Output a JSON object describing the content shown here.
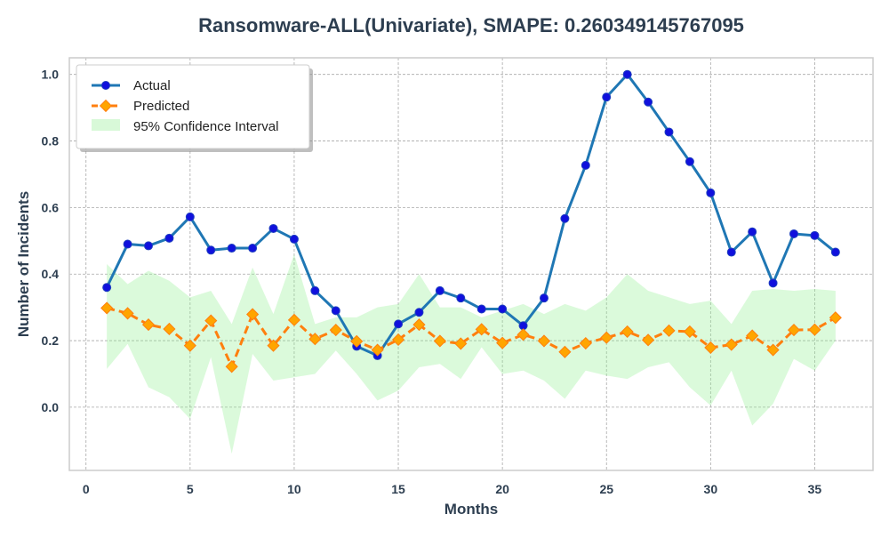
{
  "chart_data": {
    "type": "line",
    "title": "Ransomware-ALL(Univariate), SMAPE: 0.260349145767095",
    "xlabel": "Months",
    "ylabel": "Number of Incidents",
    "xlim": [
      -0.8,
      37.8
    ],
    "ylim": [
      -0.19,
      1.05
    ],
    "xticks": [
      0,
      5,
      10,
      15,
      20,
      25,
      30,
      35
    ],
    "yticks": [
      0.0,
      0.2,
      0.4,
      0.6,
      0.8,
      1.0
    ],
    "xtick_labels": [
      "0",
      "5",
      "10",
      "15",
      "20",
      "25",
      "30",
      "35"
    ],
    "ytick_labels": [
      "0.0",
      "0.2",
      "0.4",
      "0.6",
      "0.8",
      "1.0"
    ],
    "grid": true,
    "legend_position": "top-left",
    "x": [
      1,
      2,
      3,
      4,
      5,
      6,
      7,
      8,
      9,
      10,
      11,
      12,
      13,
      14,
      15,
      16,
      17,
      18,
      19,
      20,
      21,
      22,
      23,
      24,
      25,
      26,
      27,
      28,
      29,
      30,
      31,
      32,
      33,
      34,
      35,
      36
    ],
    "series": [
      {
        "name": "Actual",
        "color": "#1f77b4",
        "marker_color": "#1010dd",
        "values": [
          0.36,
          0.49,
          0.485,
          0.508,
          0.572,
          0.472,
          0.478,
          0.478,
          0.537,
          0.505,
          0.35,
          0.29,
          0.183,
          0.155,
          0.25,
          0.285,
          0.35,
          0.328,
          0.295,
          0.295,
          0.245,
          0.328,
          0.567,
          0.727,
          0.932,
          1.0,
          0.917,
          0.827,
          0.738,
          0.644,
          0.466,
          0.527,
          0.373,
          0.521,
          0.516,
          0.466
        ]
      },
      {
        "name": "Predicted",
        "color": "#ff7f0e",
        "marker_color": "#ffa500",
        "values": [
          0.298,
          0.282,
          0.248,
          0.235,
          0.185,
          0.26,
          0.122,
          0.279,
          0.185,
          0.262,
          0.205,
          0.232,
          0.198,
          0.172,
          0.203,
          0.248,
          0.199,
          0.191,
          0.234,
          0.193,
          0.218,
          0.199,
          0.166,
          0.192,
          0.209,
          0.227,
          0.202,
          0.23,
          0.227,
          0.179,
          0.188,
          0.215,
          0.172,
          0.232,
          0.233,
          0.269
        ]
      }
    ],
    "confidence_interval": {
      "name": "95% Confidence Interval",
      "color": "#90ee90",
      "lower": [
        0.115,
        0.19,
        0.06,
        0.03,
        -0.035,
        0.15,
        -0.14,
        0.16,
        0.08,
        0.09,
        0.1,
        0.17,
        0.1,
        0.02,
        0.05,
        0.12,
        0.13,
        0.085,
        0.18,
        0.1,
        0.11,
        0.08,
        0.025,
        0.11,
        0.095,
        0.085,
        0.12,
        0.135,
        0.06,
        0.005,
        0.11,
        -0.055,
        0.01,
        0.145,
        0.11,
        0.2
      ],
      "upper": [
        0.43,
        0.37,
        0.41,
        0.38,
        0.33,
        0.35,
        0.25,
        0.42,
        0.28,
        0.46,
        0.25,
        0.27,
        0.27,
        0.3,
        0.31,
        0.4,
        0.3,
        0.3,
        0.27,
        0.29,
        0.31,
        0.28,
        0.31,
        0.29,
        0.33,
        0.4,
        0.35,
        0.33,
        0.31,
        0.32,
        0.25,
        0.35,
        0.355,
        0.35,
        0.355,
        0.35
      ]
    }
  }
}
